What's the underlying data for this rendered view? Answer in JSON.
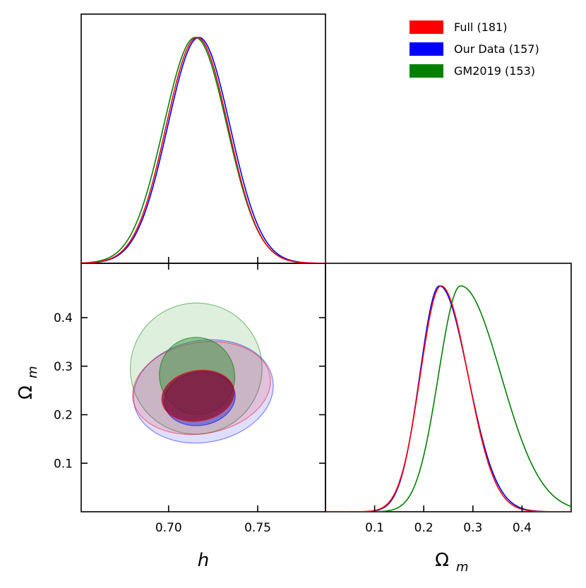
{
  "chart_data": {
    "type": "corner-plot",
    "parameters": [
      "h",
      "Ω_m"
    ],
    "axis_labels": {
      "h": {
        "text": "h"
      },
      "omega": {
        "main": "Ω",
        "sub": "m"
      }
    },
    "h_axis": {
      "range": [
        0.651,
        0.788
      ],
      "ticks": [
        0.7,
        0.75
      ],
      "tick_labels": [
        "0.70",
        "0.75"
      ]
    },
    "omega_axis_2d": {
      "range": [
        0.0,
        0.512
      ],
      "ticks": [
        0.1,
        0.2,
        0.3,
        0.4
      ],
      "tick_labels": [
        "0.1",
        "0.2",
        "0.3",
        "0.4"
      ]
    },
    "omega_axis_1d": {
      "range": [
        0.0,
        0.5
      ],
      "ticks": [
        0.1,
        0.2,
        0.3,
        0.4
      ],
      "tick_labels": [
        "0.1",
        "0.2",
        "0.3",
        "0.4"
      ]
    },
    "series": [
      {
        "name": "Full (181)",
        "color": "#ff0000",
        "fill_dark": "#8b0f2a",
        "h_mean": 0.716,
        "h_sigma": 0.0174,
        "om_mode": 0.235,
        "om_sigma_left": 0.042,
        "om_sigma_right": 0.055,
        "contour_1sigma": {
          "center": [
            0.7165,
            0.239
          ],
          "semi_axes": [
            0.0205,
            0.052
          ],
          "angle": 0
        },
        "contour_2sigma": {
          "center": [
            0.7185,
            0.255
          ],
          "semi_axes": [
            0.039,
            0.094
          ],
          "angle": 0
        }
      },
      {
        "name": "Our Data (157)",
        "color": "#0000ff",
        "fill_dark": "#2b2bd8",
        "h_mean": 0.717,
        "h_sigma": 0.0175,
        "om_mode": 0.232,
        "om_sigma_left": 0.04,
        "om_sigma_right": 0.058,
        "contour_1sigma": {
          "center": [
            0.7175,
            0.233
          ],
          "semi_axes": [
            0.02,
            0.055
          ],
          "angle": 0
        },
        "contour_2sigma": {
          "center": [
            0.7195,
            0.248
          ],
          "semi_axes": [
            0.0395,
            0.105
          ],
          "angle": 0
        }
      },
      {
        "name": "GM2019 (153)",
        "color": "#008000",
        "fill_dark": "#2e8b2e",
        "h_mean": 0.715,
        "h_sigma": 0.0178,
        "om_mode": 0.275,
        "om_sigma_left": 0.045,
        "om_sigma_right": 0.082,
        "contour_1sigma": {
          "center": [
            0.716,
            0.28
          ],
          "semi_axes": [
            0.021,
            0.08
          ],
          "angle": 0
        },
        "contour_2sigma": {
          "center": [
            0.7155,
            0.295
          ],
          "semi_axes": [
            0.037,
            0.135
          ],
          "angle": 0
        }
      }
    ],
    "legend_position": "top-right"
  }
}
